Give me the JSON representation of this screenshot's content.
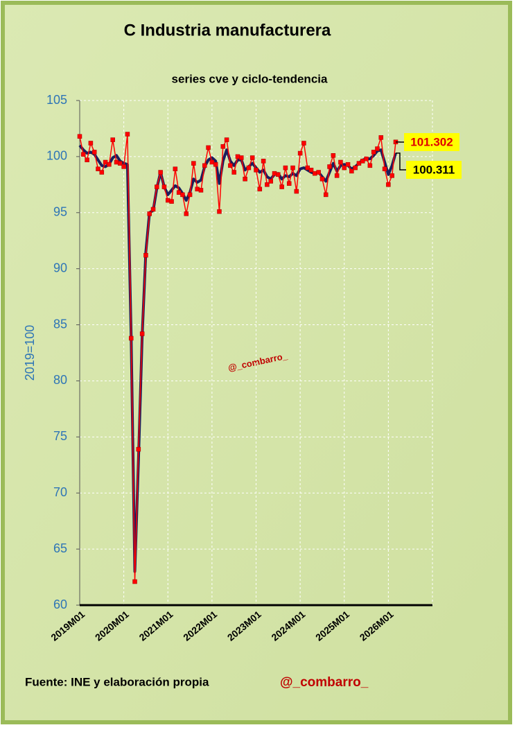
{
  "chart_data": {
    "type": "line",
    "title": "C Industria manufacturera",
    "subtitle": "series cve y ciclo-tendencia",
    "y_label": "2019=100",
    "watermark": "@_combarro_",
    "source": "Fuente: INE  y elaboración propia",
    "author": "@_combarro_",
    "categories": [
      "2019M01",
      null,
      null,
      null,
      null,
      null,
      null,
      null,
      null,
      null,
      null,
      null,
      "2020M01",
      null,
      null,
      null,
      null,
      null,
      null,
      null,
      null,
      null,
      null,
      null,
      "2021M01",
      null,
      null,
      null,
      null,
      null,
      null,
      null,
      null,
      null,
      null,
      null,
      "2022M01",
      null,
      null,
      null,
      null,
      null,
      null,
      null,
      null,
      null,
      null,
      null,
      "2023M01",
      null,
      null,
      null,
      null,
      null,
      null,
      null,
      null,
      null,
      null,
      null,
      "2024M01",
      null,
      null,
      null,
      null,
      null,
      null,
      null,
      null,
      null,
      null,
      null,
      "2025M01",
      null,
      null,
      null,
      null,
      null,
      null,
      null,
      null,
      null,
      null,
      null,
      "2026M01",
      null,
      null,
      null,
      null,
      null,
      null,
      null,
      null,
      null,
      null,
      null
    ],
    "series": [
      {
        "color": "#ff0000",
        "marker": "square",
        "values": [
          101.8,
          100.2,
          99.7,
          101.2,
          100.4,
          98.9,
          98.6,
          99.5,
          99.3,
          101.5,
          99.5,
          99.4,
          99.1,
          102.0,
          83.8,
          62.1,
          73.9,
          84.2,
          91.2,
          94.9,
          95.3,
          97.3,
          98.6,
          97.3,
          96.1,
          96.0,
          98.9,
          96.8,
          96.6,
          94.9,
          96.6,
          99.4,
          97.1,
          97.0,
          99.2,
          100.8,
          99.5,
          99.3,
          95.1,
          100.9,
          101.5,
          99.2,
          98.6,
          100.0,
          99.9,
          98.0,
          99.0,
          99.9,
          98.8,
          97.1,
          99.6,
          97.5,
          97.8,
          98.5,
          98.4,
          97.3,
          99.0,
          97.6,
          99.0,
          96.9,
          100.3,
          101.2,
          99.0,
          98.8,
          98.5,
          98.6,
          98.0,
          96.6,
          99.1,
          100.1,
          98.3,
          99.5,
          99.0,
          99.3,
          98.7,
          99.0,
          99.4,
          99.6,
          99.8,
          99.2,
          100.4,
          100.7,
          101.7,
          98.9,
          97.5,
          98.3,
          101.302,
          null,
          null,
          null,
          null,
          null,
          null,
          null,
          null,
          null
        ]
      },
      {
        "color": "#1a1f5e",
        "values": [
          101.0,
          100.6,
          100.3,
          100.4,
          100.2,
          99.7,
          99.2,
          99.1,
          99.3,
          99.9,
          100.1,
          99.6,
          99.4,
          99.3,
          84.0,
          63.0,
          73.0,
          84.0,
          91.5,
          95.0,
          95.2,
          97.2,
          98.6,
          97.3,
          96.6,
          97.0,
          97.4,
          97.2,
          96.7,
          96.1,
          96.8,
          98.0,
          97.7,
          97.9,
          99.1,
          99.7,
          99.9,
          99.6,
          97.6,
          99.6,
          100.6,
          99.6,
          99.2,
          99.7,
          99.7,
          98.8,
          99.1,
          99.4,
          99.0,
          98.6,
          98.8,
          98.2,
          98.0,
          98.4,
          98.5,
          98.0,
          98.3,
          98.2,
          98.5,
          98.3,
          98.9,
          99.0,
          98.8,
          98.6,
          98.5,
          98.6,
          98.2,
          97.8,
          98.6,
          99.4,
          98.7,
          99.2,
          99.3,
          99.2,
          98.9,
          99.1,
          99.4,
          99.7,
          99.8,
          99.8,
          100.1,
          100.5,
          100.6,
          99.5,
          98.4,
          99.2,
          100.311,
          null,
          null,
          null,
          null,
          null,
          null,
          null,
          null,
          null
        ]
      }
    ],
    "ylim": [
      60,
      105
    ],
    "yticks": [
      60,
      65,
      70,
      75,
      80,
      85,
      90,
      95,
      100,
      105
    ],
    "grid": true
  }
}
